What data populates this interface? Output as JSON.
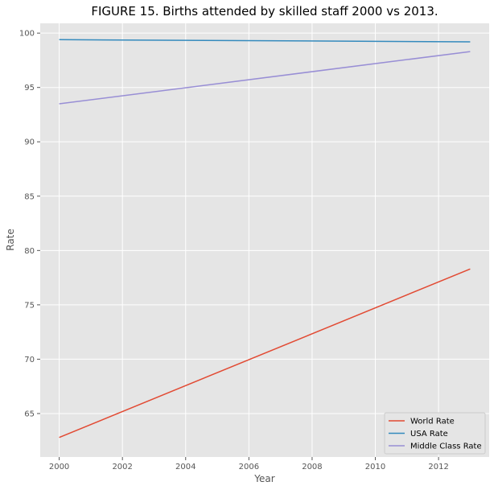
{
  "chart_data": {
    "type": "line",
    "title": "FIGURE 15. Births attended by skilled staff 2000 vs 2013.",
    "xlabel": "Year",
    "ylabel": "Rate",
    "xlim": [
      1999.4,
      2013.6
    ],
    "ylim": [
      61.0,
      100.9
    ],
    "xticks": [
      2000,
      2002,
      2004,
      2006,
      2008,
      2010,
      2012
    ],
    "yticks": [
      65,
      70,
      75,
      80,
      85,
      90,
      95,
      100
    ],
    "grid": true,
    "legend_position": "lower-right",
    "series": [
      {
        "name": "World Rate",
        "color": "#E24A33",
        "x": [
          2000,
          2013
        ],
        "values": [
          62.8,
          78.3
        ]
      },
      {
        "name": "USA Rate",
        "color": "#348ABD",
        "x": [
          2000,
          2013
        ],
        "values": [
          99.4,
          99.2
        ]
      },
      {
        "name": "Middle Class Rate",
        "color": "#988ED5",
        "x": [
          2000,
          2013
        ],
        "values": [
          93.5,
          98.3
        ]
      }
    ]
  }
}
